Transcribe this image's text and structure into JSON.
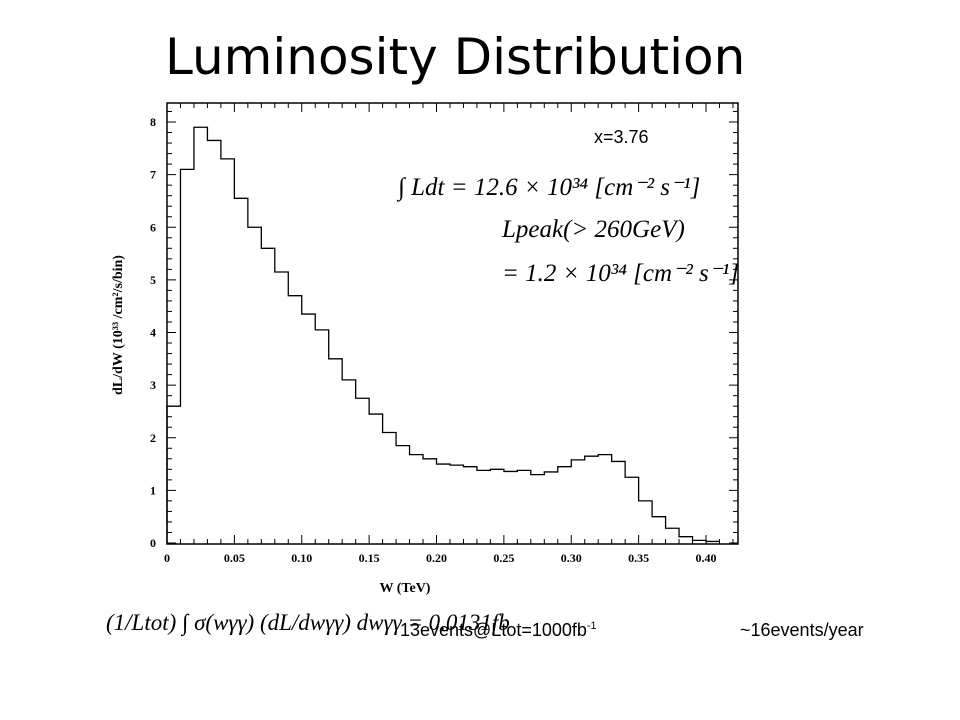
{
  "slide": {
    "title": "Luminosity Distribution",
    "x_param": "x=3.76",
    "eq_line1": "∫ Ldt = 12.6 × 10³⁴ [cm⁻² s⁻¹]",
    "eq_line2": "Lpeak(> 260GeV)",
    "eq_line3": "= 1.2 × 10³⁴ [cm⁻² s⁻¹]",
    "bottom_equation": "(1/Ltot) ∫ σ(wγγ) (dL/dwγγ) dwγγ = 0.0131fb",
    "events_text": "13events@Ltot=1000fb",
    "events_sup": "-1",
    "per_year": "~16events/year"
  },
  "chart_data": {
    "type": "histogram",
    "title": "",
    "xlabel": "W  (TeV)",
    "ylabel": "dL/dW  (10³³ /cm²/s/bin)",
    "xlim": [
      0,
      0.42
    ],
    "ylim": [
      0,
      8.3
    ],
    "x_ticks": [
      "0",
      "0.05",
      "0.10",
      "0.15",
      "0.20",
      "0.25",
      "0.30",
      "0.35",
      "0.40"
    ],
    "y_ticks": [
      "0",
      "1",
      "2",
      "3",
      "4",
      "5",
      "6",
      "7",
      "8"
    ],
    "bin_width": 0.01,
    "bin_edges_start": 0.0,
    "values": [
      2.6,
      7.1,
      7.9,
      7.65,
      7.3,
      6.55,
      6.0,
      5.6,
      5.15,
      4.7,
      4.35,
      4.05,
      3.5,
      3.1,
      2.75,
      2.45,
      2.1,
      1.85,
      1.68,
      1.6,
      1.5,
      1.48,
      1.45,
      1.38,
      1.4,
      1.36,
      1.38,
      1.3,
      1.35,
      1.45,
      1.58,
      1.65,
      1.68,
      1.55,
      1.25,
      0.8,
      0.5,
      0.28,
      0.12,
      0.05,
      0.03
    ],
    "grid": false
  }
}
